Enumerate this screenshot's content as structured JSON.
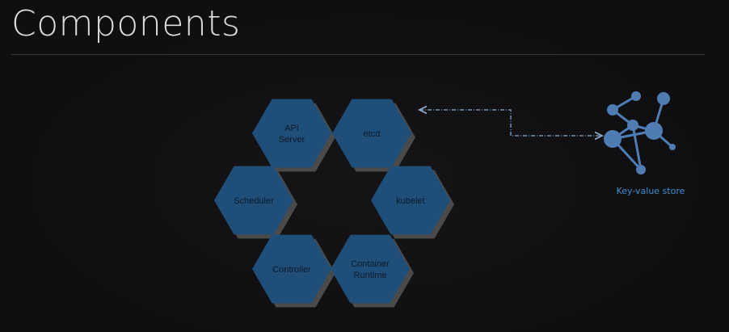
{
  "title": "Components",
  "components": [
    {
      "id": "api-server",
      "lines": [
        "API",
        "Server"
      ]
    },
    {
      "id": "etcd",
      "lines": [
        "etcd"
      ]
    },
    {
      "id": "scheduler",
      "lines": [
        "Scheduler"
      ]
    },
    {
      "id": "kubelet",
      "lines": [
        "kubelet"
      ]
    },
    {
      "id": "controller",
      "lines": [
        "Controller"
      ]
    },
    {
      "id": "container-runtime",
      "lines": [
        "Container",
        "Runtime"
      ]
    }
  ],
  "key_value_store": {
    "label": "Key-value store",
    "icon": "graph-network-icon"
  },
  "colors": {
    "hex_fill": "#1f4e79",
    "hex_shadow": "#4a4a4a",
    "accent": "#3f8fd0",
    "node": "#4f7db3",
    "connector": "#6e8fb3"
  }
}
